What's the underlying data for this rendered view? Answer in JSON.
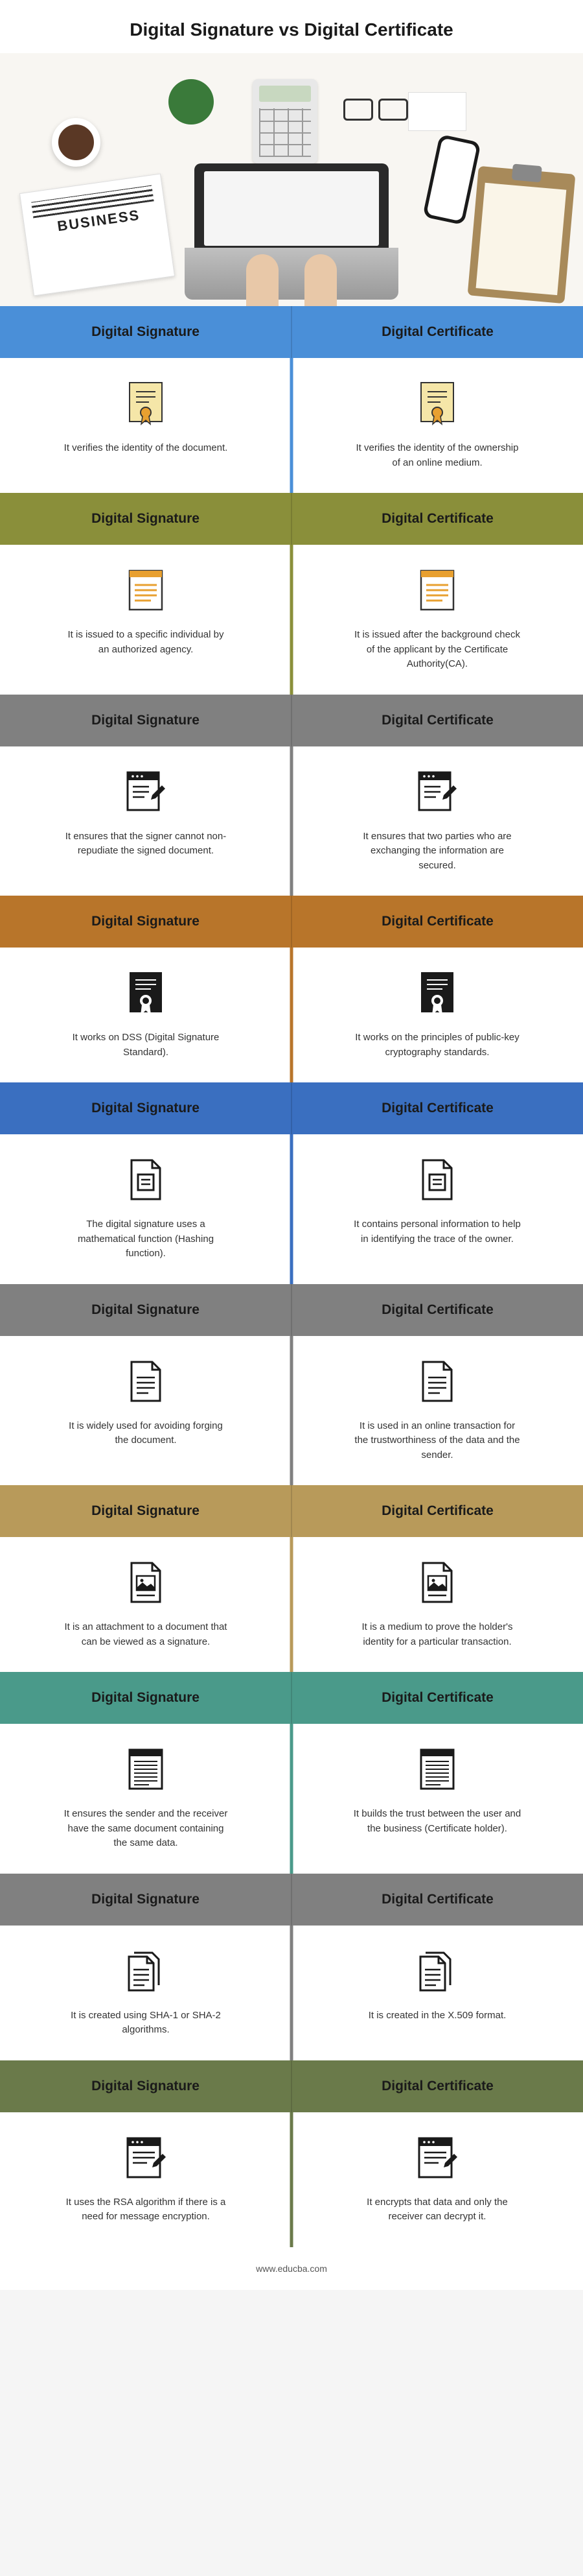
{
  "title": "Digital Signature vs Digital Certificate",
  "left_label": "Digital Signature",
  "right_label": "Digital Certificate",
  "footer": "www.educba.com",
  "header_colors": [
    "#4a8fd8",
    "#8a8f3a",
    "#808080",
    "#b8752a",
    "#3a6fc0",
    "#808080",
    "#b89a5a",
    "#4a9a8a",
    "#808080",
    "#6a7a4a"
  ],
  "header_text_colors": [
    "#1a1a1a",
    "#1a1a1a",
    "#1a1a1a",
    "#1a1a1a",
    "#1a1a1a",
    "#1a1a1a",
    "#1a1a1a",
    "#1a1a1a",
    "#1a1a1a",
    "#1a1a1a"
  ],
  "divider_colors": [
    "#4a8fd8",
    "#8a8f3a",
    "#808080",
    "#b8752a",
    "#3a6fc0",
    "#808080",
    "#b89a5a",
    "#4a9a8a",
    "#808080",
    "#6a7a4a"
  ],
  "rows": [
    {
      "left": "It verifies the identity of the document.",
      "right": "It verifies the identity of the ownership of an online medium.",
      "icon": "cert-yellow"
    },
    {
      "left": "It is issued to a specific individual by an authorized agency.",
      "right": "It is issued after the background check of the applicant by the Certificate Authority(CA).",
      "icon": "doc-lines"
    },
    {
      "left": "It ensures that the signer cannot non-repudiate the signed document.",
      "right": "It ensures that two parties who are exchanging the information are secured.",
      "icon": "doc-pencil"
    },
    {
      "left": "It works on DSS (Digital Signature Standard).",
      "right": "It works on the principles of public-key cryptography standards.",
      "icon": "cert-black"
    },
    {
      "left": "The digital signature uses a mathematical function (Hashing function).",
      "right": "It contains personal information to help in identifying the trace of the owner.",
      "icon": "doc-outline"
    },
    {
      "left": "It is widely used for avoiding forging the document.",
      "right": "It is used in an online transaction for the trustworthiness of the data and the sender.",
      "icon": "doc-simple"
    },
    {
      "left": "It is an attachment to a document that can be viewed as a signature.",
      "right": "It is a medium to prove the holder's identity for a particular transaction.",
      "icon": "doc-image"
    },
    {
      "left": "It ensures the sender and the receiver have the same document containing the same data.",
      "right": "It builds the trust between the user and the business (Certificate holder).",
      "icon": "doc-dense"
    },
    {
      "left": "It is created using SHA-1 or SHA-2 algorithms.",
      "right": "It is created in the X.509 format.",
      "icon": "doc-stack"
    },
    {
      "left": "It uses the RSA algorithm if there is a need for message encryption.",
      "right": "It encrypts that data and only the receiver can decrypt it.",
      "icon": "doc-browser"
    }
  ]
}
